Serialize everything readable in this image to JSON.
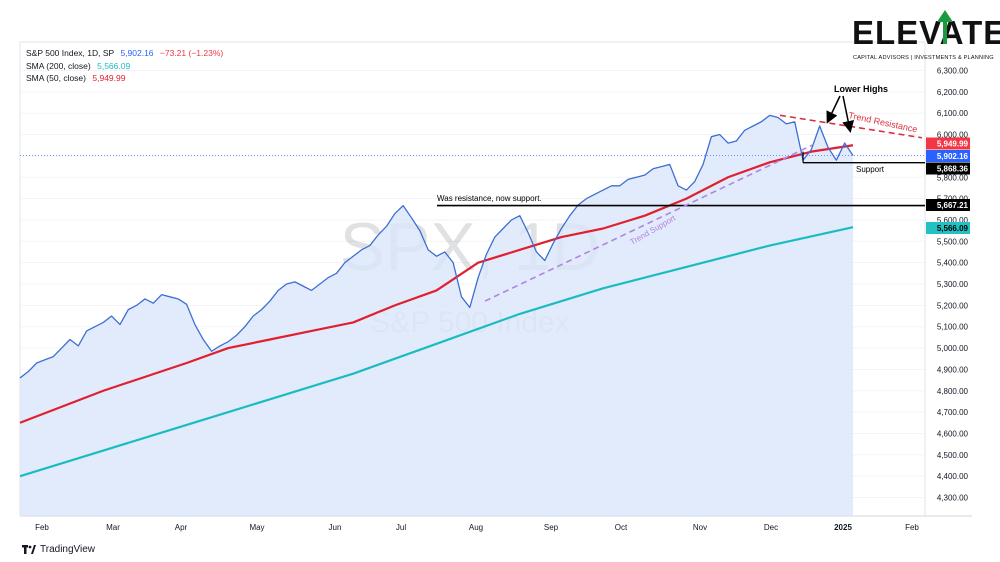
{
  "legend": {
    "main_label": "S&P 500 Index, 1D, SP",
    "main_price": "5,902.16",
    "main_change": "−73.21 (−1.23%)",
    "sma200_label": "SMA (200, close)",
    "sma200_value": "5,566.09",
    "sma50_label": "SMA (50, close)",
    "sma50_value": "5,949.99"
  },
  "watermark": {
    "symbol": "SPX, 1D",
    "name": "S&P 500 Index"
  },
  "logo": {
    "word": "ELEVATE",
    "tagline": "CAPITAL ADVISORS | INVESTMENTS & PLANNING"
  },
  "footer": {
    "brand": "TradingView"
  },
  "annotations": {
    "lower_highs": "Lower Highs",
    "trend_resistance": "Trend Resistance",
    "support": "Support",
    "was_resistance": "Was resistance, now support.",
    "trend_support": "Trend Support"
  },
  "price_labels": [
    {
      "text": "5,949.99",
      "value": 5949.99,
      "bg": "#f23645",
      "fg": "#ffffff"
    },
    {
      "text": "5,902.16",
      "value": 5902.16,
      "bg": "#2962ff",
      "fg": "#ffffff"
    },
    {
      "text": "5,868.36",
      "value": 5868.36,
      "bg": "#000000",
      "fg": "#ffffff"
    },
    {
      "text": "5,667.21",
      "value": 5667.21,
      "bg": "#000000",
      "fg": "#ffffff"
    },
    {
      "text": "5,566.09",
      "value": 5566.09,
      "bg": "#22c1c3",
      "fg": "#000000"
    }
  ],
  "colors": {
    "price": "#3d6fd1",
    "sma50": "#e0202f",
    "sma200": "#1bbcc0",
    "fill": "#dbe6fb",
    "resistance": "#d9323c",
    "support_trend": "#b283e0"
  },
  "chart_data": {
    "type": "line",
    "title": "S&P 500 Index, 1D, SP",
    "ylim": [
      4300,
      6300
    ],
    "y_ticks": [
      "4,300.00",
      "4,400.00",
      "4,500.00",
      "4,600.00",
      "4,700.00",
      "4,800.00",
      "4,900.00",
      "5,000.00",
      "5,100.00",
      "5,200.00",
      "5,300.00",
      "5,400.00",
      "5,500.00",
      "5,600.00",
      "5,700.00",
      "5,800.00",
      "5,900.00",
      "6,000.00",
      "6,100.00",
      "6,200.00",
      "6,300.00"
    ],
    "x_months": [
      "Feb",
      "Mar",
      "Apr",
      "May",
      "Jun",
      "Jul",
      "Aug",
      "Sep",
      "Oct",
      "Nov",
      "Dec",
      "2025",
      "Feb"
    ],
    "grid": true,
    "series": [
      {
        "name": "S&P 500 Index",
        "points": [
          [
            0,
            4860
          ],
          [
            1,
            4890
          ],
          [
            2,
            4930
          ],
          [
            3,
            4945
          ],
          [
            4,
            4960
          ],
          [
            5,
            5000
          ],
          [
            6,
            5040
          ],
          [
            7,
            5010
          ],
          [
            8,
            5080
          ],
          [
            9,
            5100
          ],
          [
            10,
            5120
          ],
          [
            11,
            5150
          ],
          [
            12,
            5110
          ],
          [
            13,
            5180
          ],
          [
            14,
            5200
          ],
          [
            15,
            5230
          ],
          [
            16,
            5210
          ],
          [
            17,
            5250
          ],
          [
            18,
            5240
          ],
          [
            19,
            5230
          ],
          [
            20,
            5205
          ],
          [
            21,
            5110
          ],
          [
            22,
            5040
          ],
          [
            23,
            4985
          ],
          [
            24,
            5010
          ],
          [
            25,
            5030
          ],
          [
            26,
            5060
          ],
          [
            27,
            5100
          ],
          [
            28,
            5150
          ],
          [
            29,
            5180
          ],
          [
            30,
            5220
          ],
          [
            31,
            5270
          ],
          [
            32,
            5300
          ],
          [
            33,
            5310
          ],
          [
            34,
            5290
          ],
          [
            35,
            5270
          ],
          [
            36,
            5300
          ],
          [
            37,
            5330
          ],
          [
            38,
            5350
          ],
          [
            39,
            5400
          ],
          [
            40,
            5430
          ],
          [
            41,
            5460
          ],
          [
            42,
            5480
          ],
          [
            43,
            5530
          ],
          [
            44,
            5570
          ],
          [
            45,
            5630
          ],
          [
            46,
            5667
          ],
          [
            47,
            5610
          ],
          [
            48,
            5550
          ],
          [
            49,
            5460
          ],
          [
            50,
            5430
          ],
          [
            51,
            5450
          ],
          [
            52,
            5400
          ],
          [
            53,
            5240
          ],
          [
            54,
            5190
          ],
          [
            55,
            5330
          ],
          [
            56,
            5440
          ],
          [
            57,
            5520
          ],
          [
            58,
            5560
          ],
          [
            59,
            5600
          ],
          [
            60,
            5620
          ],
          [
            61,
            5540
          ],
          [
            62,
            5450
          ],
          [
            63,
            5410
          ],
          [
            64,
            5490
          ],
          [
            65,
            5560
          ],
          [
            66,
            5620
          ],
          [
            67,
            5670
          ],
          [
            68,
            5700
          ],
          [
            69,
            5720
          ],
          [
            70,
            5740
          ],
          [
            71,
            5760
          ],
          [
            72,
            5760
          ],
          [
            73,
            5790
          ],
          [
            74,
            5800
          ],
          [
            75,
            5810
          ],
          [
            76,
            5840
          ],
          [
            77,
            5850
          ],
          [
            78,
            5860
          ],
          [
            79,
            5760
          ],
          [
            80,
            5740
          ],
          [
            81,
            5780
          ],
          [
            82,
            5860
          ],
          [
            83,
            5990
          ],
          [
            84,
            6000
          ],
          [
            85,
            5960
          ],
          [
            86,
            5970
          ],
          [
            87,
            6020
          ],
          [
            88,
            6040
          ],
          [
            89,
            6060
          ],
          [
            90,
            6090
          ],
          [
            91,
            6080
          ],
          [
            92,
            6050
          ],
          [
            93,
            6060
          ],
          [
            94,
            5880
          ],
          [
            95,
            5930
          ],
          [
            96,
            6040
          ],
          [
            97,
            5940
          ],
          [
            98,
            5880
          ],
          [
            99,
            5960
          ],
          [
            100,
            5902
          ]
        ]
      },
      {
        "name": "SMA (50, close)",
        "points": [
          [
            0,
            4650
          ],
          [
            10,
            4800
          ],
          [
            20,
            4930
          ],
          [
            25,
            5000
          ],
          [
            30,
            5040
          ],
          [
            35,
            5080
          ],
          [
            40,
            5120
          ],
          [
            45,
            5200
          ],
          [
            50,
            5270
          ],
          [
            55,
            5400
          ],
          [
            60,
            5460
          ],
          [
            65,
            5520
          ],
          [
            70,
            5560
          ],
          [
            75,
            5620
          ],
          [
            80,
            5700
          ],
          [
            85,
            5800
          ],
          [
            90,
            5870
          ],
          [
            95,
            5920
          ],
          [
            100,
            5949.99
          ]
        ]
      },
      {
        "name": "SMA (200, close)",
        "points": [
          [
            0,
            4400
          ],
          [
            10,
            4520
          ],
          [
            20,
            4640
          ],
          [
            30,
            4760
          ],
          [
            40,
            4880
          ],
          [
            50,
            5020
          ],
          [
            60,
            5160
          ],
          [
            70,
            5280
          ],
          [
            80,
            5380
          ],
          [
            90,
            5480
          ],
          [
            100,
            5566.09
          ]
        ]
      }
    ]
  }
}
